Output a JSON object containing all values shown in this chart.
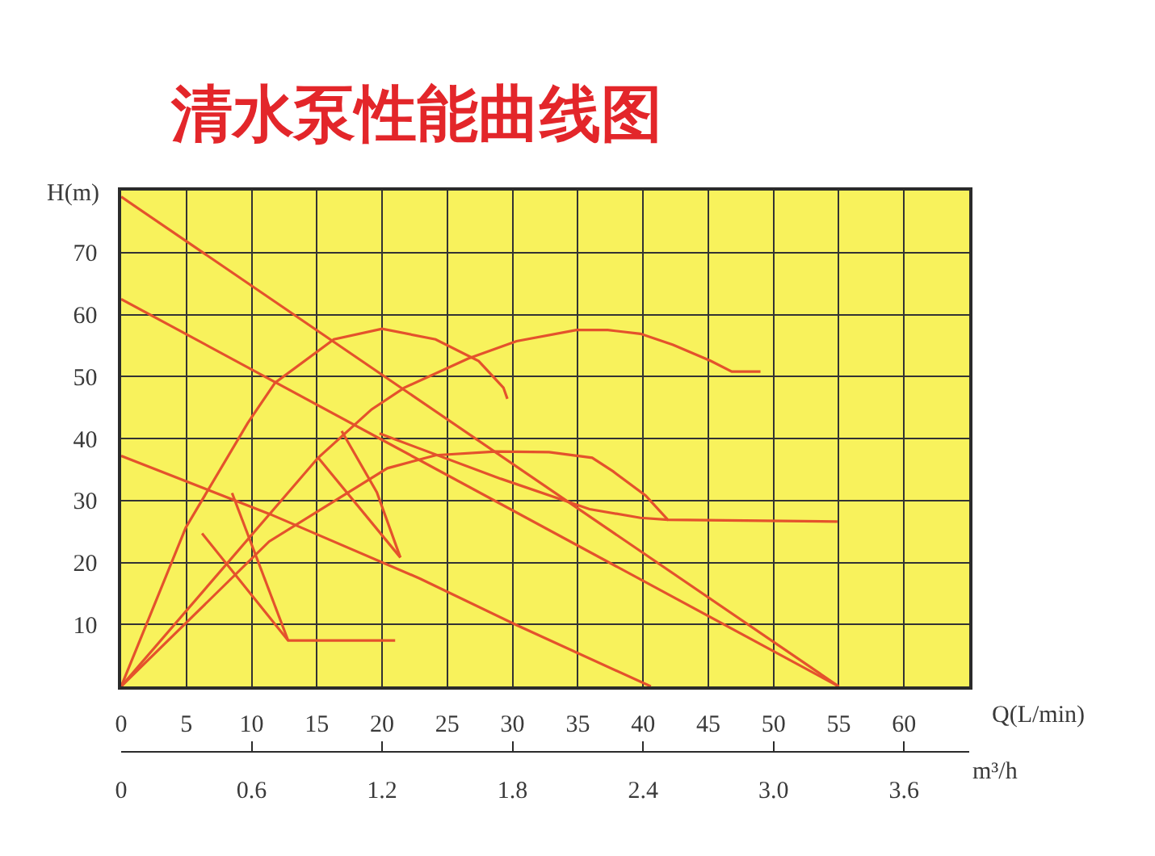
{
  "chart_data": {
    "type": "line",
    "title": "清水泵性能曲线图",
    "xlabel": "Q(L/min)",
    "ylabel": "H(m)",
    "x2label": "m³/h",
    "xlim": [
      0,
      65
    ],
    "xticks": [
      0,
      5,
      10,
      15,
      20,
      25,
      30,
      35,
      40,
      45,
      50,
      55,
      60
    ],
    "ylim": [
      0,
      80
    ],
    "yticks": [
      10,
      20,
      30,
      40,
      50,
      60,
      70
    ],
    "x2lim": [
      0,
      3.9
    ],
    "x2ticks": [
      0,
      0.6,
      1.2,
      1.8,
      2.4,
      {
        "value": 3,
        "label": "3.0"
      },
      3.6
    ],
    "grid": true,
    "line_style": "solid",
    "series": [
      {
        "color": "#e4522c",
        "x": [
          0,
          55
        ],
        "values": [
          79,
          0
        ]
      },
      {
        "color": "#e4522c",
        "x": [
          0,
          55
        ],
        "values": [
          62.5,
          0
        ]
      },
      {
        "color": "#e4522c",
        "x": [
          0,
          11.4,
          22.9,
          30.3,
          40.6
        ],
        "values": [
          37.2,
          27.8,
          17.4,
          9.9,
          0
        ]
      },
      {
        "color": "#e4522c",
        "x": [
          0,
          4.95,
          9.7,
          11.8,
          16.3,
          20,
          24.1,
          27.4,
          29.3,
          29.6
        ],
        "values": [
          0,
          25.6,
          42.5,
          49,
          56,
          57.7,
          56,
          52.5,
          48.2,
          46.4
        ]
      },
      {
        "color": "#e4522c",
        "x": [
          0,
          15.1,
          19.2,
          21.7,
          26.6,
          30.3,
          34.9,
          37.3,
          39.8,
          42.3,
          45.2,
          46.8,
          49
        ],
        "values": [
          0,
          36.9,
          44.7,
          48.2,
          52.9,
          55.7,
          57.5,
          57.5,
          56.9,
          55.1,
          52.5,
          50.8,
          50.8
        ]
      },
      {
        "color": "#e4522c",
        "x": [
          6.2,
          12.8,
          21
        ],
        "values": [
          24.7,
          7.4,
          7.4
        ]
      },
      {
        "color": "#e4522c",
        "x": [
          8.5,
          12.8
        ],
        "values": [
          31.2,
          7.4
        ]
      },
      {
        "color": "#e4522c",
        "x": [
          15.1,
          21.4
        ],
        "values": [
          36.9,
          20.8
        ]
      },
      {
        "color": "#e4522c",
        "x": [
          16.9,
          19.6,
          21.4
        ],
        "values": [
          41.2,
          31.3,
          20.8
        ]
      },
      {
        "color": "#e4522c",
        "x": [
          0,
          11.35,
          20.4,
          24.1,
          28.7,
          32.8,
          36.1,
          37.7,
          40.2,
          41.9,
          54.9
        ],
        "values": [
          0,
          23.4,
          35.2,
          37.3,
          37.9,
          37.8,
          36.9,
          34.7,
          30.8,
          26.9,
          26.6
        ]
      },
      {
        "color": "#e4522c",
        "x": [
          19.8,
          29.1,
          35.9,
          39.8,
          41.9
        ],
        "values": [
          40.8,
          33.5,
          28.6,
          27.2,
          26.9
        ]
      }
    ]
  }
}
